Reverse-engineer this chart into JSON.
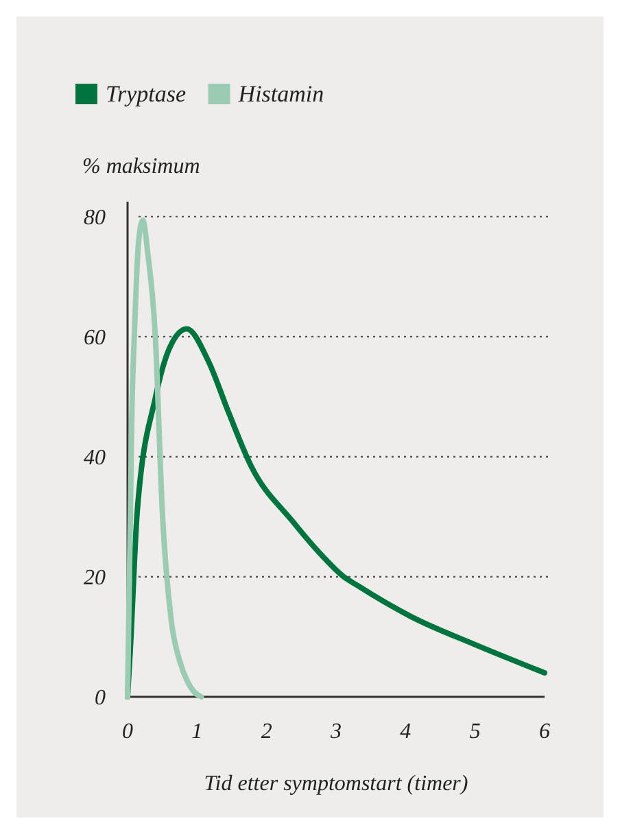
{
  "chart_data": {
    "type": "line",
    "xlabel": "Tid etter symptomstart (timer)",
    "ylabel": "% maksimum",
    "xlim": [
      0,
      6
    ],
    "xticks": [
      0,
      1,
      2,
      3,
      4,
      5,
      6
    ],
    "ylim": [
      0,
      82.5
    ],
    "yticks": [
      0,
      20,
      40,
      60,
      80
    ],
    "grid": "y",
    "legend": "top left",
    "line_style": "solid",
    "marker": "none",
    "series": [
      {
        "name": "Tryptase",
        "color": "#00743f",
        "x": [
          0,
          0.04,
          0.14,
          0.4,
          0.6,
          0.85,
          1.16,
          1.45,
          1.78,
          2.37,
          2.8,
          3.1,
          3.3,
          4.09,
          5,
          6
        ],
        "values": [
          0,
          8,
          31,
          49.8,
          58,
          61.3,
          56,
          47.5,
          38.4,
          29.3,
          23.5,
          20.1,
          18.6,
          13.3,
          8.7,
          4
        ]
      },
      {
        "name": "Histamin",
        "color": "#9ccbb3",
        "x": [
          0,
          0.04,
          0.06,
          0.1,
          0.16,
          0.22,
          0.29,
          0.4,
          0.5,
          0.63,
          0.75,
          0.86,
          0.96,
          1.06
        ],
        "values": [
          0,
          30,
          46,
          61,
          76,
          79.4,
          74,
          59.9,
          30.9,
          12.6,
          6,
          2.6,
          0.8,
          0
        ]
      }
    ]
  }
}
